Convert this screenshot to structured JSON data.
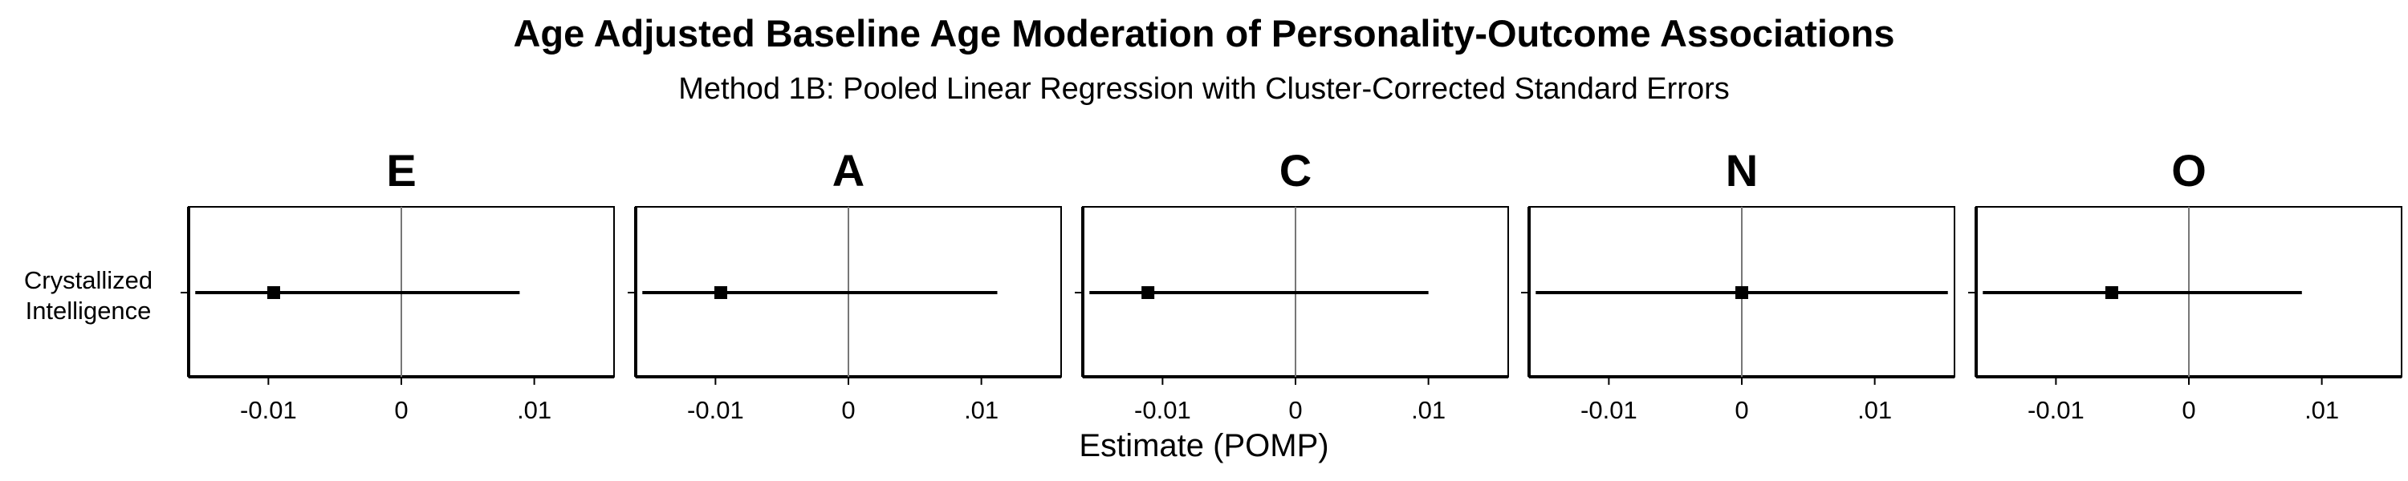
{
  "chart_data": {
    "type": "forest",
    "title": "Age Adjusted Baseline Age Moderation of Personality-Outcome Associations",
    "subtitle": "Method 1B: Pooled Linear Regression with Cluster-Corrected Standard Errors",
    "xlabel": "Estimate (POMP)",
    "ylabel": "",
    "xlim": [
      -0.016,
      0.016
    ],
    "x_ticks": [
      -0.01,
      0,
      0.01
    ],
    "x_tick_labels": [
      "-0.01",
      "0",
      ".01"
    ],
    "reference_line": 0,
    "grid": false,
    "row_labels": [
      "Crystallized",
      "Intelligence"
    ],
    "panels": [
      {
        "label": "E",
        "estimate": -0.0096,
        "ci": [
          -0.0155,
          0.0089
        ]
      },
      {
        "label": "A",
        "estimate": -0.0096,
        "ci": [
          -0.0155,
          0.0112
        ]
      },
      {
        "label": "C",
        "estimate": -0.0111,
        "ci": [
          -0.0155,
          0.01
        ]
      },
      {
        "label": "N",
        "estimate": 0.0,
        "ci": [
          -0.0155,
          0.0155
        ]
      },
      {
        "label": "O",
        "estimate": -0.0058,
        "ci": [
          -0.0155,
          0.0085
        ]
      }
    ]
  }
}
